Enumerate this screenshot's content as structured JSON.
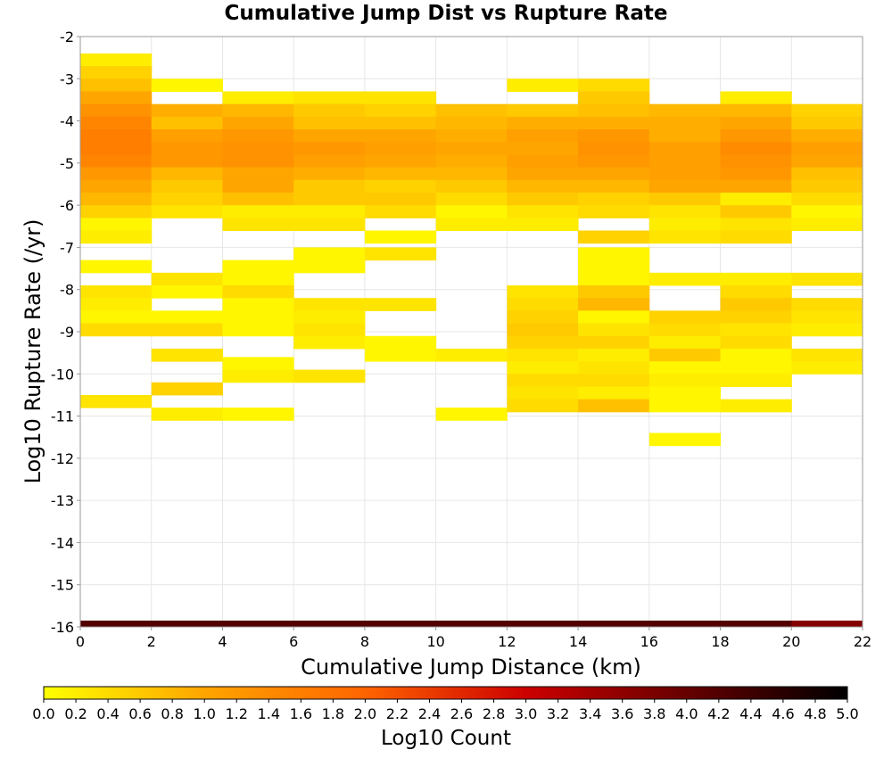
{
  "chart_data": {
    "type": "heatmap",
    "title": "Cumulative Jump Dist vs Rupture Rate",
    "xlabel": "Cumulative Jump Distance (km)",
    "ylabel": "Log10 Rupture Rate (/yr)",
    "xlim": [
      0,
      22
    ],
    "ylim": [
      -16,
      -2
    ],
    "x_ticks": [
      "0",
      "2",
      "4",
      "6",
      "8",
      "10",
      "12",
      "14",
      "16",
      "18",
      "20",
      "22"
    ],
    "y_ticks": [
      "-2",
      "-3",
      "-4",
      "-5",
      "-6",
      "-7",
      "-8",
      "-9",
      "-10",
      "-11",
      "-12",
      "-13",
      "-14",
      "-15",
      "-16"
    ],
    "x_bin_width": 2,
    "y_bin_height": 0.3,
    "colorbar": {
      "label": "Log10 Count",
      "range": [
        0,
        5
      ],
      "ticks": [
        "0.0",
        "0.2",
        "0.4",
        "0.6",
        "0.8",
        "1.0",
        "1.2",
        "1.4",
        "1.6",
        "1.8",
        "2.0",
        "2.2",
        "2.4",
        "2.6",
        "2.8",
        "3.0",
        "3.2",
        "3.4",
        "3.6",
        "3.8",
        "4.0",
        "4.2",
        "4.4",
        "4.6",
        "4.8",
        "5.0"
      ],
      "stops": [
        "#ffff00",
        "#ffa500",
        "#ff6400",
        "#cc0000",
        "#660000",
        "#000000"
      ]
    },
    "columns": [
      {
        "x0": 0,
        "rows": [
          [
            -2.7,
            0.3,
            0.2
          ],
          [
            -3.0,
            0.3,
            0.5
          ],
          [
            -3.3,
            0.3,
            0.7
          ],
          [
            -3.6,
            0.3,
            1.0
          ],
          [
            -3.9,
            0.3,
            1.3
          ],
          [
            -4.2,
            0.3,
            1.5
          ],
          [
            -4.5,
            0.3,
            1.6
          ],
          [
            -4.8,
            0.3,
            1.6
          ],
          [
            -5.1,
            0.3,
            1.5
          ],
          [
            -5.4,
            0.3,
            1.2
          ],
          [
            -5.7,
            0.3,
            1.0
          ],
          [
            -6.0,
            0.3,
            0.8
          ],
          [
            -6.3,
            0.3,
            0.5
          ],
          [
            -6.6,
            0.3,
            0.1
          ],
          [
            -6.9,
            0.3,
            0.2
          ],
          [
            -7.6,
            0.3,
            0.1
          ],
          [
            -8.2,
            0.3,
            0.3
          ],
          [
            -8.5,
            0.3,
            0.2
          ],
          [
            -8.8,
            0.3,
            0.1
          ],
          [
            -9.1,
            0.3,
            0.4
          ],
          [
            -10.8,
            0.3,
            0.3
          ]
        ]
      },
      {
        "x0": 2,
        "rows": [
          [
            -3.3,
            0.3,
            0.1
          ],
          [
            -3.9,
            0.3,
            0.9
          ],
          [
            -4.2,
            0.3,
            0.7
          ],
          [
            -4.5,
            0.3,
            1.1
          ],
          [
            -4.8,
            0.3,
            1.2
          ],
          [
            -5.1,
            0.3,
            1.2
          ],
          [
            -5.4,
            0.3,
            0.8
          ],
          [
            -5.7,
            0.3,
            0.6
          ],
          [
            -6.0,
            0.3,
            0.5
          ],
          [
            -6.3,
            0.3,
            0.3
          ],
          [
            -7.9,
            0.3,
            0.3
          ],
          [
            -8.2,
            0.3,
            0.1
          ],
          [
            -8.8,
            0.3,
            0.1
          ],
          [
            -9.1,
            0.3,
            0.4
          ],
          [
            -9.7,
            0.3,
            0.3
          ],
          [
            -10.5,
            0.3,
            0.5
          ],
          [
            -11.1,
            0.3,
            0.2
          ]
        ]
      },
      {
        "x0": 4,
        "rows": [
          [
            -3.6,
            0.3,
            0.2
          ],
          [
            -3.9,
            0.3,
            0.8
          ],
          [
            -4.2,
            0.3,
            1.0
          ],
          [
            -4.5,
            0.3,
            1.2
          ],
          [
            -4.8,
            0.3,
            1.3
          ],
          [
            -5.1,
            0.3,
            1.3
          ],
          [
            -5.4,
            0.3,
            1.0
          ],
          [
            -5.7,
            0.3,
            1.0
          ],
          [
            -6.0,
            0.3,
            0.7
          ],
          [
            -6.3,
            0.3,
            0.2
          ],
          [
            -6.6,
            0.3,
            0.3
          ],
          [
            -7.6,
            0.3,
            0.1
          ],
          [
            -7.9,
            0.3,
            0.1
          ],
          [
            -8.2,
            0.3,
            0.4
          ],
          [
            -8.5,
            0.3,
            0.1
          ],
          [
            -8.8,
            0.3,
            0.1
          ],
          [
            -9.1,
            0.3,
            0.1
          ],
          [
            -9.9,
            0.3,
            0.1
          ],
          [
            -10.2,
            0.3,
            0.2
          ],
          [
            -11.1,
            0.3,
            0.1
          ]
        ]
      },
      {
        "x0": 6,
        "rows": [
          [
            -3.6,
            0.3,
            0.3
          ],
          [
            -3.9,
            0.3,
            0.6
          ],
          [
            -4.2,
            0.3,
            0.7
          ],
          [
            -4.5,
            0.3,
            1.0
          ],
          [
            -4.8,
            0.3,
            1.2
          ],
          [
            -5.1,
            0.3,
            1.1
          ],
          [
            -5.4,
            0.3,
            0.9
          ],
          [
            -5.7,
            0.3,
            0.6
          ],
          [
            -6.0,
            0.3,
            0.6
          ],
          [
            -6.3,
            0.3,
            0.2
          ],
          [
            -6.6,
            0.3,
            0.3
          ],
          [
            -7.3,
            0.3,
            0.1
          ],
          [
            -7.6,
            0.3,
            0.1
          ],
          [
            -8.5,
            0.3,
            0.3
          ],
          [
            -8.8,
            0.3,
            0.2
          ],
          [
            -9.1,
            0.3,
            0.3
          ],
          [
            -9.4,
            0.3,
            0.2
          ],
          [
            -10.2,
            0.3,
            0.3
          ]
        ]
      },
      {
        "x0": 8,
        "rows": [
          [
            -3.6,
            0.3,
            0.3
          ],
          [
            -3.9,
            0.3,
            0.5
          ],
          [
            -4.2,
            0.3,
            0.7
          ],
          [
            -4.5,
            0.3,
            1.0
          ],
          [
            -4.8,
            0.3,
            1.1
          ],
          [
            -5.1,
            0.3,
            1.0
          ],
          [
            -5.4,
            0.3,
            0.8
          ],
          [
            -5.7,
            0.3,
            0.5
          ],
          [
            -6.0,
            0.3,
            0.6
          ],
          [
            -6.3,
            0.3,
            0.4
          ],
          [
            -6.9,
            0.3,
            0.1
          ],
          [
            -7.3,
            0.3,
            0.3
          ],
          [
            -8.5,
            0.3,
            0.3
          ],
          [
            -9.4,
            0.3,
            0.1
          ],
          [
            -9.7,
            0.3,
            0.1
          ]
        ]
      },
      {
        "x0": 10,
        "rows": [
          [
            -3.9,
            0.3,
            0.7
          ],
          [
            -4.2,
            0.3,
            0.8
          ],
          [
            -4.5,
            0.3,
            0.9
          ],
          [
            -4.8,
            0.3,
            1.0
          ],
          [
            -5.1,
            0.3,
            0.9
          ],
          [
            -5.4,
            0.3,
            0.8
          ],
          [
            -5.7,
            0.3,
            0.6
          ],
          [
            -6.0,
            0.3,
            0.4
          ],
          [
            -6.3,
            0.3,
            0.1
          ],
          [
            -6.6,
            0.3,
            0.2
          ],
          [
            -9.7,
            0.3,
            0.2
          ],
          [
            -11.1,
            0.3,
            0.1
          ]
        ]
      },
      {
        "x0": 12,
        "rows": [
          [
            -3.3,
            0.3,
            0.2
          ],
          [
            -3.9,
            0.3,
            0.6
          ],
          [
            -4.2,
            0.3,
            0.9
          ],
          [
            -4.5,
            0.3,
            1.1
          ],
          [
            -4.8,
            0.3,
            1.0
          ],
          [
            -5.1,
            0.3,
            1.1
          ],
          [
            -5.4,
            0.3,
            1.0
          ],
          [
            -5.7,
            0.3,
            0.8
          ],
          [
            -6.0,
            0.3,
            0.6
          ],
          [
            -6.3,
            0.3,
            0.3
          ],
          [
            -6.6,
            0.3,
            0.2
          ],
          [
            -8.2,
            0.3,
            0.3
          ],
          [
            -8.5,
            0.3,
            0.4
          ],
          [
            -8.8,
            0.3,
            0.5
          ],
          [
            -9.1,
            0.3,
            0.6
          ],
          [
            -9.4,
            0.3,
            0.5
          ],
          [
            -9.7,
            0.3,
            0.3
          ],
          [
            -10.0,
            0.3,
            0.2
          ],
          [
            -10.3,
            0.3,
            0.4
          ],
          [
            -10.6,
            0.3,
            0.3
          ],
          [
            -10.9,
            0.3,
            0.4
          ]
        ]
      },
      {
        "x0": 14,
        "rows": [
          [
            -3.3,
            0.3,
            0.4
          ],
          [
            -3.6,
            0.3,
            0.6
          ],
          [
            -3.9,
            0.3,
            0.7
          ],
          [
            -4.2,
            0.3,
            0.9
          ],
          [
            -4.5,
            0.3,
            1.2
          ],
          [
            -4.8,
            0.3,
            1.3
          ],
          [
            -5.1,
            0.3,
            1.2
          ],
          [
            -5.4,
            0.3,
            1.0
          ],
          [
            -5.7,
            0.3,
            0.8
          ],
          [
            -6.0,
            0.3,
            0.5
          ],
          [
            -6.3,
            0.3,
            0.4
          ],
          [
            -6.9,
            0.3,
            0.5
          ],
          [
            -7.3,
            0.3,
            0.1
          ],
          [
            -7.6,
            0.3,
            0.1
          ],
          [
            -7.9,
            0.3,
            0.1
          ],
          [
            -8.2,
            0.3,
            0.6
          ],
          [
            -8.5,
            0.3,
            0.8
          ],
          [
            -8.8,
            0.3,
            0.1
          ],
          [
            -9.1,
            0.3,
            0.3
          ],
          [
            -9.4,
            0.3,
            0.5
          ],
          [
            -9.7,
            0.3,
            0.2
          ],
          [
            -10.0,
            0.3,
            0.3
          ],
          [
            -10.3,
            0.3,
            0.4
          ],
          [
            -10.6,
            0.3,
            0.2
          ],
          [
            -10.9,
            0.3,
            0.7
          ]
        ]
      },
      {
        "x0": 16,
        "rows": [
          [
            -3.9,
            0.3,
            0.8
          ],
          [
            -4.2,
            0.3,
            0.9
          ],
          [
            -4.5,
            0.3,
            0.9
          ],
          [
            -4.8,
            0.3,
            1.1
          ],
          [
            -5.1,
            0.3,
            1.1
          ],
          [
            -5.4,
            0.3,
            1.1
          ],
          [
            -5.7,
            0.3,
            1.0
          ],
          [
            -6.0,
            0.3,
            0.6
          ],
          [
            -6.3,
            0.3,
            0.3
          ],
          [
            -6.6,
            0.3,
            0.2
          ],
          [
            -6.9,
            0.3,
            0.3
          ],
          [
            -7.9,
            0.3,
            0.2
          ],
          [
            -8.8,
            0.3,
            0.5
          ],
          [
            -9.1,
            0.3,
            0.4
          ],
          [
            -9.4,
            0.3,
            0.2
          ],
          [
            -9.7,
            0.3,
            0.6
          ],
          [
            -10.0,
            0.3,
            0.1
          ],
          [
            -10.3,
            0.3,
            0.2
          ],
          [
            -10.6,
            0.3,
            0.1
          ],
          [
            -10.9,
            0.3,
            0.1
          ],
          [
            -11.7,
            0.3,
            0.1
          ]
        ]
      },
      {
        "x0": 18,
        "rows": [
          [
            -3.6,
            0.3,
            0.2
          ],
          [
            -3.9,
            0.3,
            0.8
          ],
          [
            -4.2,
            0.3,
            1.0
          ],
          [
            -4.5,
            0.3,
            1.2
          ],
          [
            -4.8,
            0.3,
            1.4
          ],
          [
            -5.1,
            0.3,
            1.3
          ],
          [
            -5.4,
            0.3,
            1.2
          ],
          [
            -5.7,
            0.3,
            1.0
          ],
          [
            -6.0,
            0.3,
            0.2
          ],
          [
            -6.3,
            0.3,
            0.6
          ],
          [
            -6.6,
            0.3,
            0.3
          ],
          [
            -6.9,
            0.3,
            0.4
          ],
          [
            -7.9,
            0.3,
            0.2
          ],
          [
            -8.2,
            0.3,
            0.4
          ],
          [
            -8.5,
            0.3,
            0.6
          ],
          [
            -8.8,
            0.3,
            0.5
          ],
          [
            -9.1,
            0.3,
            0.3
          ],
          [
            -9.4,
            0.3,
            0.4
          ],
          [
            -9.7,
            0.3,
            0.1
          ],
          [
            -10.0,
            0.3,
            0.1
          ],
          [
            -10.3,
            0.3,
            0.2
          ],
          [
            -10.9,
            0.3,
            0.2
          ]
        ]
      },
      {
        "x0": 20,
        "rows": [
          [
            -3.9,
            0.3,
            0.5
          ],
          [
            -4.2,
            0.3,
            0.6
          ],
          [
            -4.5,
            0.3,
            0.9
          ],
          [
            -4.8,
            0.3,
            1.1
          ],
          [
            -5.1,
            0.3,
            1.0
          ],
          [
            -5.4,
            0.3,
            0.7
          ],
          [
            -5.7,
            0.3,
            0.6
          ],
          [
            -6.0,
            0.3,
            0.4
          ],
          [
            -6.3,
            0.3,
            0.1
          ],
          [
            -6.6,
            0.3,
            0.2
          ],
          [
            -7.9,
            0.3,
            0.3
          ],
          [
            -8.5,
            0.3,
            0.4
          ],
          [
            -8.8,
            0.3,
            0.3
          ],
          [
            -9.1,
            0.3,
            0.2
          ],
          [
            -9.7,
            0.3,
            0.3
          ],
          [
            -10.0,
            0.3,
            0.2
          ]
        ]
      }
    ],
    "bottom_row": {
      "y0": -16,
      "height": 0.15,
      "values": [
        4.2,
        4.2,
        4.2,
        4.2,
        4.2,
        4.2,
        4.2,
        4.2,
        4.2,
        4.2,
        3.7
      ]
    }
  }
}
